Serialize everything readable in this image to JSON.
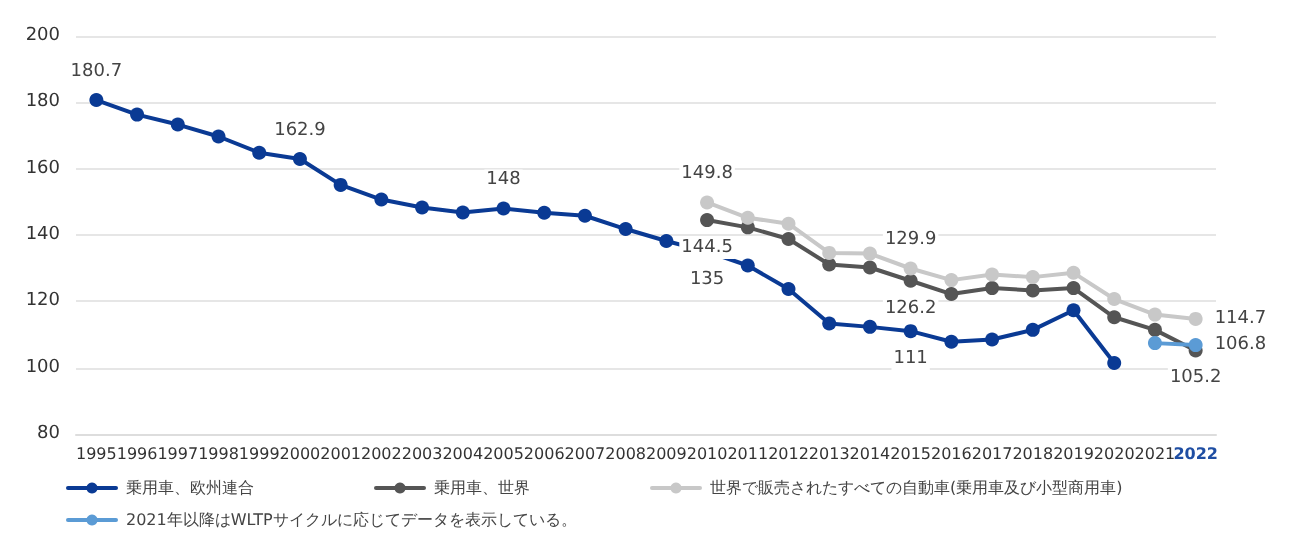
{
  "chart_data": {
    "type": "line",
    "categories": [
      "1995",
      "1996",
      "1997",
      "1998",
      "1999",
      "2000",
      "2001",
      "2002",
      "2003",
      "2004",
      "2005",
      "2006",
      "2007",
      "2008",
      "2009",
      "2010",
      "2011",
      "2012",
      "2013",
      "2014",
      "2015",
      "2016",
      "2017",
      "2018",
      "2019",
      "2020",
      "2021",
      "2022"
    ],
    "series": [
      {
        "name": "乗用車、欧州連合",
        "color": "#0a3a94",
        "values": [
          180.7,
          176.3,
          173.3,
          169.7,
          164.8,
          162.9,
          155.1,
          150.7,
          148.3,
          146.8,
          148,
          146.7,
          145.8,
          141.8,
          138.2,
          135,
          130.8,
          123.7,
          113.3,
          112.3,
          111,
          107.8,
          108.5,
          111.4,
          117.3,
          101.4,
          null,
          null
        ],
        "value_labels": [
          "180.7",
          null,
          null,
          null,
          null,
          "162.9",
          null,
          null,
          null,
          null,
          "148",
          null,
          null,
          null,
          null,
          "135",
          null,
          null,
          null,
          null,
          "111",
          null,
          null,
          null,
          null,
          null,
          null,
          null
        ]
      },
      {
        "name": "乗用車、世界",
        "color": "#555555",
        "values": [
          null,
          null,
          null,
          null,
          null,
          null,
          null,
          null,
          null,
          null,
          null,
          null,
          null,
          null,
          null,
          144.5,
          142.3,
          138.8,
          131.1,
          130.2,
          126.2,
          122.2,
          124,
          123.3,
          124,
          115.2,
          111.4,
          105.2
        ],
        "value_labels": [
          null,
          null,
          null,
          null,
          null,
          null,
          null,
          null,
          null,
          null,
          null,
          null,
          null,
          null,
          null,
          "144.5",
          null,
          null,
          null,
          null,
          "126.2",
          null,
          null,
          null,
          null,
          null,
          null,
          "105.2"
        ]
      },
      {
        "name": "世界で販売されたすべての自動車(乗用車及び小型商用車)",
        "color": "#c8c8c8",
        "values": [
          null,
          null,
          null,
          null,
          null,
          null,
          null,
          null,
          null,
          null,
          null,
          null,
          null,
          null,
          null,
          149.8,
          145.2,
          143.4,
          134.6,
          134.4,
          129.9,
          126.4,
          128.1,
          127.3,
          128.6,
          120.7,
          116,
          114.7
        ],
        "value_labels": [
          null,
          null,
          null,
          null,
          null,
          null,
          null,
          null,
          null,
          null,
          null,
          null,
          null,
          null,
          null,
          "149.8",
          null,
          null,
          null,
          null,
          "129.9",
          null,
          null,
          null,
          null,
          null,
          null,
          "114.7"
        ]
      },
      {
        "name": "2021年以降はWLTPサイクルに応じてデータを表示している。",
        "color": "#5b9bd5",
        "values": [
          null,
          null,
          null,
          null,
          null,
          null,
          null,
          null,
          null,
          null,
          null,
          null,
          null,
          null,
          null,
          null,
          null,
          null,
          null,
          null,
          null,
          null,
          null,
          null,
          null,
          null,
          107.4,
          106.8
        ],
        "value_labels": [
          null,
          null,
          null,
          null,
          null,
          null,
          null,
          null,
          null,
          null,
          null,
          null,
          null,
          null,
          null,
          null,
          null,
          null,
          null,
          null,
          null,
          null,
          null,
          null,
          null,
          null,
          null,
          "106.8"
        ]
      }
    ],
    "ylim": [
      80,
      200
    ],
    "yticks": [
      80,
      100,
      120,
      140,
      160,
      180,
      200
    ],
    "grid": "y",
    "legend": "bottom",
    "marker": "circle",
    "line_style": "solid"
  }
}
